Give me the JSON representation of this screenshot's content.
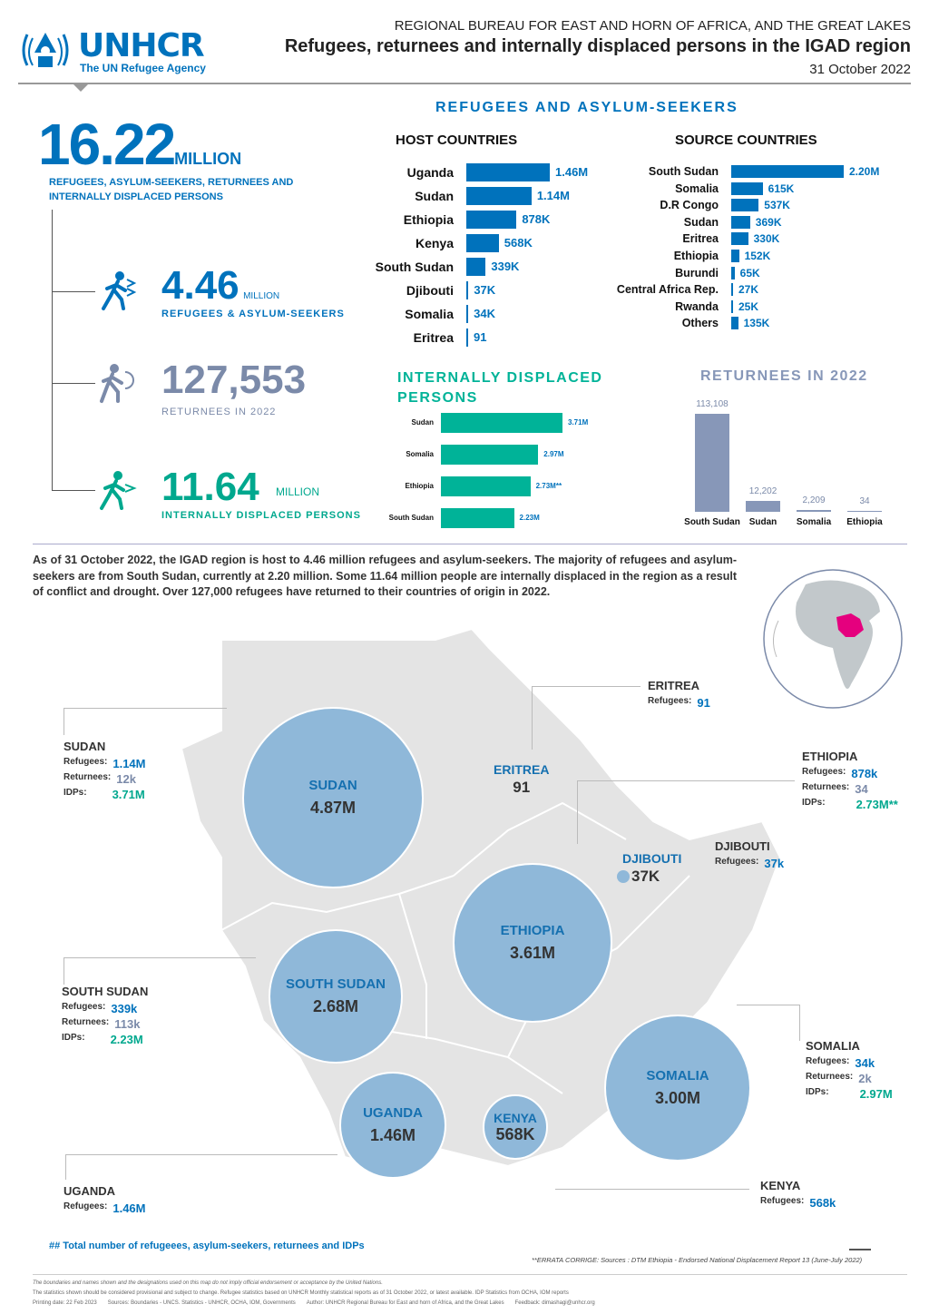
{
  "header": {
    "org_name": "UNHCR",
    "org_sub": "The UN Refugee Agency",
    "bureau": "REGIONAL BUREAU FOR EAST AND HORN OF AFRICA, AND THE GREAT LAKES",
    "title": "Refugees, returnees and internally displaced persons in the IGAD region",
    "date": "31 October 2022"
  },
  "totals": {
    "big_number": "16.22",
    "big_unit": "MILLION",
    "big_label": "REFUGEES, ASYLUM-SEEKERS, RETURNEES AND INTERNALLY DISPLACED PERSONS",
    "refugees_number": "4.46",
    "refugees_unit": "MILLION",
    "refugees_label": "REFUGEES & ASYLUM-SEEKERS",
    "returnees_number": "127,553",
    "returnees_label": "RETURNEES IN 2022",
    "idps_number": "11.64",
    "idps_unit": "MILLION",
    "idps_label": "INTERNALLY DISPLACED PERSONS"
  },
  "refugees_section_title": "REFUGEES AND ASYLUM-SEEKERS",
  "chart_data": [
    {
      "type": "bar",
      "title": "HOST COUNTRIES",
      "categories": [
        "Uganda",
        "Sudan",
        "Ethiopia",
        "Kenya",
        "South Sudan",
        "Djibouti",
        "Somalia",
        "Eritrea"
      ],
      "values": [
        1460000,
        1140000,
        878000,
        568000,
        339000,
        37000,
        34000,
        91
      ],
      "labels": [
        "1.46M",
        "1.14M",
        "878K",
        "568K",
        "339K",
        "37K",
        "34K",
        "91"
      ],
      "orientation": "horizontal",
      "color": "#0072bc"
    },
    {
      "type": "bar",
      "title": "SOURCE COUNTRIES",
      "categories": [
        "South Sudan",
        "Somalia",
        "D.R Congo",
        "Sudan",
        "Eritrea",
        "Ethiopia",
        "Burundi",
        "Central Africa Rep.",
        "Rwanda",
        "Others"
      ],
      "values": [
        2200000,
        615000,
        537000,
        369000,
        330000,
        152000,
        65000,
        27000,
        25000,
        135000
      ],
      "labels": [
        "2.20M",
        "615K",
        "537K",
        "369K",
        "330K",
        "152K",
        "65K",
        "27K",
        "25K",
        "135K"
      ],
      "orientation": "horizontal",
      "color": "#0072bc"
    },
    {
      "type": "bar",
      "title": "INTERNALLY DISPLACED PERSONS",
      "categories": [
        "Sudan",
        "Somalia",
        "Ethiopia",
        "South Sudan"
      ],
      "values": [
        3710000,
        2970000,
        2730000,
        2230000
      ],
      "labels": [
        "3.71M",
        "2.97M",
        "2.73M**",
        "2.23M"
      ],
      "orientation": "horizontal",
      "color": "#00b398"
    },
    {
      "type": "bar",
      "title": "RETURNEES IN 2022",
      "categories": [
        "South Sudan",
        "Sudan",
        "Somalia",
        "Ethiopia"
      ],
      "values": [
        113108,
        12202,
        2209,
        34
      ],
      "labels": [
        "113,108",
        "12,202",
        "2,209",
        "34"
      ],
      "orientation": "vertical",
      "color": "#8797b8"
    }
  ],
  "summary": "As of 31 October 2022, the IGAD region is host to 4.46 million refugees and asylum-seekers. The majority of refugees and asylum-seekers are from South Sudan, currently at 2.20 million. Some 11.64 million people are internally displaced in the region as a result of conflict and drought. Over 127,000 refugees have returned to their countries of origin in 2022.",
  "map": {
    "circles": [
      {
        "name": "SUDAN",
        "value": "4.87M"
      },
      {
        "name": "SOUTH SUDAN",
        "value": "2.68M"
      },
      {
        "name": "ETHIOPIA",
        "value": "3.61M"
      },
      {
        "name": "SOMALIA",
        "value": "3.00M"
      },
      {
        "name": "UGANDA",
        "value": "1.46M"
      },
      {
        "name": "KENYA",
        "value": "568K"
      },
      {
        "name": "ERITREA",
        "value": "91"
      },
      {
        "name": "DJIBOUTI",
        "value": "37K"
      }
    ],
    "side_labels": {
      "sudan": {
        "title": "SUDAN",
        "ref_k": "Refugees:",
        "ref": "1.14M",
        "ret_k": "Returnees:",
        "ret": "12k",
        "idp_k": "IDPs:",
        "idp": "3.71M"
      },
      "south_sudan": {
        "title": "SOUTH SUDAN",
        "ref_k": "Refugees:",
        "ref": "339k",
        "ret_k": "Returnees:",
        "ret": "113k",
        "idp_k": "IDPs:",
        "idp": "2.23M"
      },
      "uganda": {
        "title": "UGANDA",
        "ref_k": "Refugees:",
        "ref": "1.46M"
      },
      "eritrea": {
        "title": "ERITREA",
        "ref_k": "Refugees:",
        "ref": "91"
      },
      "ethiopia": {
        "title": "ETHIOPIA",
        "ref_k": "Refugees:",
        "ref": "878k",
        "ret_k": "Returnees:",
        "ret": "34",
        "idp_k": "IDPs:",
        "idp": "2.73M**"
      },
      "djibouti": {
        "title": "DJIBOUTI",
        "ref_k": "Refugees:",
        "ref": "37k"
      },
      "somalia": {
        "title": "SOMALIA",
        "ref_k": "Refugees:",
        "ref": "34k",
        "ret_k": "Returnees:",
        "ret": "2k",
        "idp_k": "IDPs:",
        "idp": "2.97M"
      },
      "kenya": {
        "title": "KENYA",
        "ref_k": "Refugees:",
        "ref": "568k"
      }
    },
    "legend_note": "## Total number of refugeees, asylum-seekers, returnees and IDPs",
    "errata": "**ERRATA CORRIGE: Sources : DTM Ethiopia - Endorsed National Displacement Report 13 (June-July 2022)"
  },
  "footer": {
    "line1": "The boundaries and names shown and the designations used on this map do not imply official endorsement or acceptance by the United Nations.",
    "line2": "The statistics shown should be considered provisional and subject to change. Refugee statistics based on UNHCR Monthly statistical reports as of 31 October 2022, or latest available. IDP Statistics from OCHA, IOM reports",
    "printing": "Printing date: 22 Feb 2023",
    "sources": "Sources: Boundaries - UNCS. Statistics - UNHCR, OCHA, IOM, Governments",
    "author": "Author: UNHCR Regional Bureau for East and horn of Africa, and the Great Lakes",
    "feedback": "Feedback: dimashagi@unhcr.org"
  },
  "colors": {
    "brand": "#0072bc",
    "teal": "#00b398",
    "returnees": "#8797b8",
    "circle": "#8fb8d9",
    "map": "#e4e4e4",
    "highlight": "#e5007e"
  },
  "icons": [
    "unhcr-logo-icon",
    "refugee-person-icon",
    "returnee-person-icon",
    "idp-person-icon",
    "globe-icon"
  ]
}
